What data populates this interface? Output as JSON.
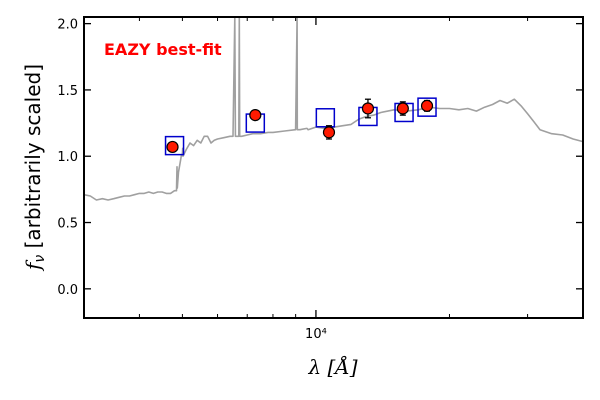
{
  "chart_data": {
    "type": "line",
    "title": "",
    "annotation": "EAZY best-fit",
    "annotation_color": "#ff0000",
    "xlabel": "λ [Å]",
    "ylabel": "f_ν [arbitrarily scaled]",
    "x_scale": "log",
    "xlim": [
      3000,
      40000
    ],
    "ylim": [
      -0.22,
      2.05
    ],
    "y_ticks": [
      0.0,
      0.5,
      1.0,
      1.5,
      2.0
    ],
    "y_tick_labels": [
      "0.0",
      "0.5",
      "1.0",
      "1.5",
      "2.0"
    ],
    "x_major_tick": 10000,
    "x_major_tick_label": "10⁴",
    "colors": {
      "sed": "#a0a0a0",
      "model_box": "#0000cc",
      "observed": "#ff1a00",
      "errorbar": "#000000"
    },
    "series": [
      {
        "name": "SED template",
        "style": "line",
        "x": [
          3000,
          3100,
          3200,
          3300,
          3400,
          3500,
          3600,
          3700,
          3800,
          3900,
          4000,
          4100,
          4200,
          4300,
          4400,
          4500,
          4600,
          4700,
          4800,
          4850,
          4861,
          4870,
          4900,
          4959,
          4970,
          5000,
          5007,
          5015,
          5100,
          5200,
          5300,
          5400,
          5500,
          5600,
          5700,
          5800,
          5900,
          6000,
          6200,
          6400,
          6500,
          6563,
          6583,
          6600,
          6700,
          6717,
          6731,
          6750,
          6800,
          7000,
          7200,
          7500,
          7800,
          8000,
          8500,
          9000,
          9069,
          9080,
          9200,
          9531,
          9545,
          9600,
          10000,
          10500,
          11000,
          11500,
          12000,
          12500,
          13000,
          13500,
          14000,
          15000,
          16000,
          17000,
          18000,
          19000,
          20000,
          21000,
          22000,
          23000,
          24000,
          25000,
          26000,
          27000,
          28000,
          29000,
          30000,
          31000,
          32000,
          34000,
          36000,
          38000,
          40000
        ],
        "y": [
          0.71,
          0.7,
          0.67,
          0.68,
          0.67,
          0.68,
          0.69,
          0.7,
          0.7,
          0.71,
          0.72,
          0.72,
          0.73,
          0.72,
          0.73,
          0.73,
          0.72,
          0.72,
          0.74,
          0.74,
          0.92,
          0.76,
          0.88,
          0.98,
          1.0,
          1.02,
          1.06,
          1.0,
          1.05,
          1.1,
          1.08,
          1.12,
          1.1,
          1.15,
          1.15,
          1.1,
          1.12,
          1.13,
          1.14,
          1.15,
          1.15,
          2.05,
          1.15,
          1.15,
          1.15,
          2.05,
          1.15,
          1.15,
          1.15,
          1.16,
          1.17,
          1.17,
          1.18,
          1.18,
          1.19,
          1.2,
          2.05,
          1.2,
          1.2,
          1.21,
          1.21,
          1.2,
          1.22,
          1.21,
          1.22,
          1.23,
          1.24,
          1.28,
          1.3,
          1.31,
          1.33,
          1.35,
          1.34,
          1.35,
          1.37,
          1.36,
          1.36,
          1.35,
          1.36,
          1.34,
          1.37,
          1.39,
          1.42,
          1.4,
          1.43,
          1.38,
          1.32,
          1.26,
          1.2,
          1.17,
          1.16,
          1.13,
          1.11
        ]
      },
      {
        "name": "Model photometry",
        "style": "box",
        "x": [
          4800,
          7300,
          10500,
          13100,
          15800,
          17800
        ],
        "y": [
          1.08,
          1.25,
          1.29,
          1.3,
          1.33,
          1.37
        ]
      },
      {
        "name": "Observed photometry",
        "style": "point_errorbar",
        "x": [
          4750,
          7300,
          10700,
          13100,
          15700,
          17800
        ],
        "y": [
          1.07,
          1.31,
          1.18,
          1.36,
          1.36,
          1.38
        ],
        "yerr": [
          0.03,
          0.03,
          0.05,
          0.07,
          0.05,
          0.04
        ]
      }
    ]
  }
}
